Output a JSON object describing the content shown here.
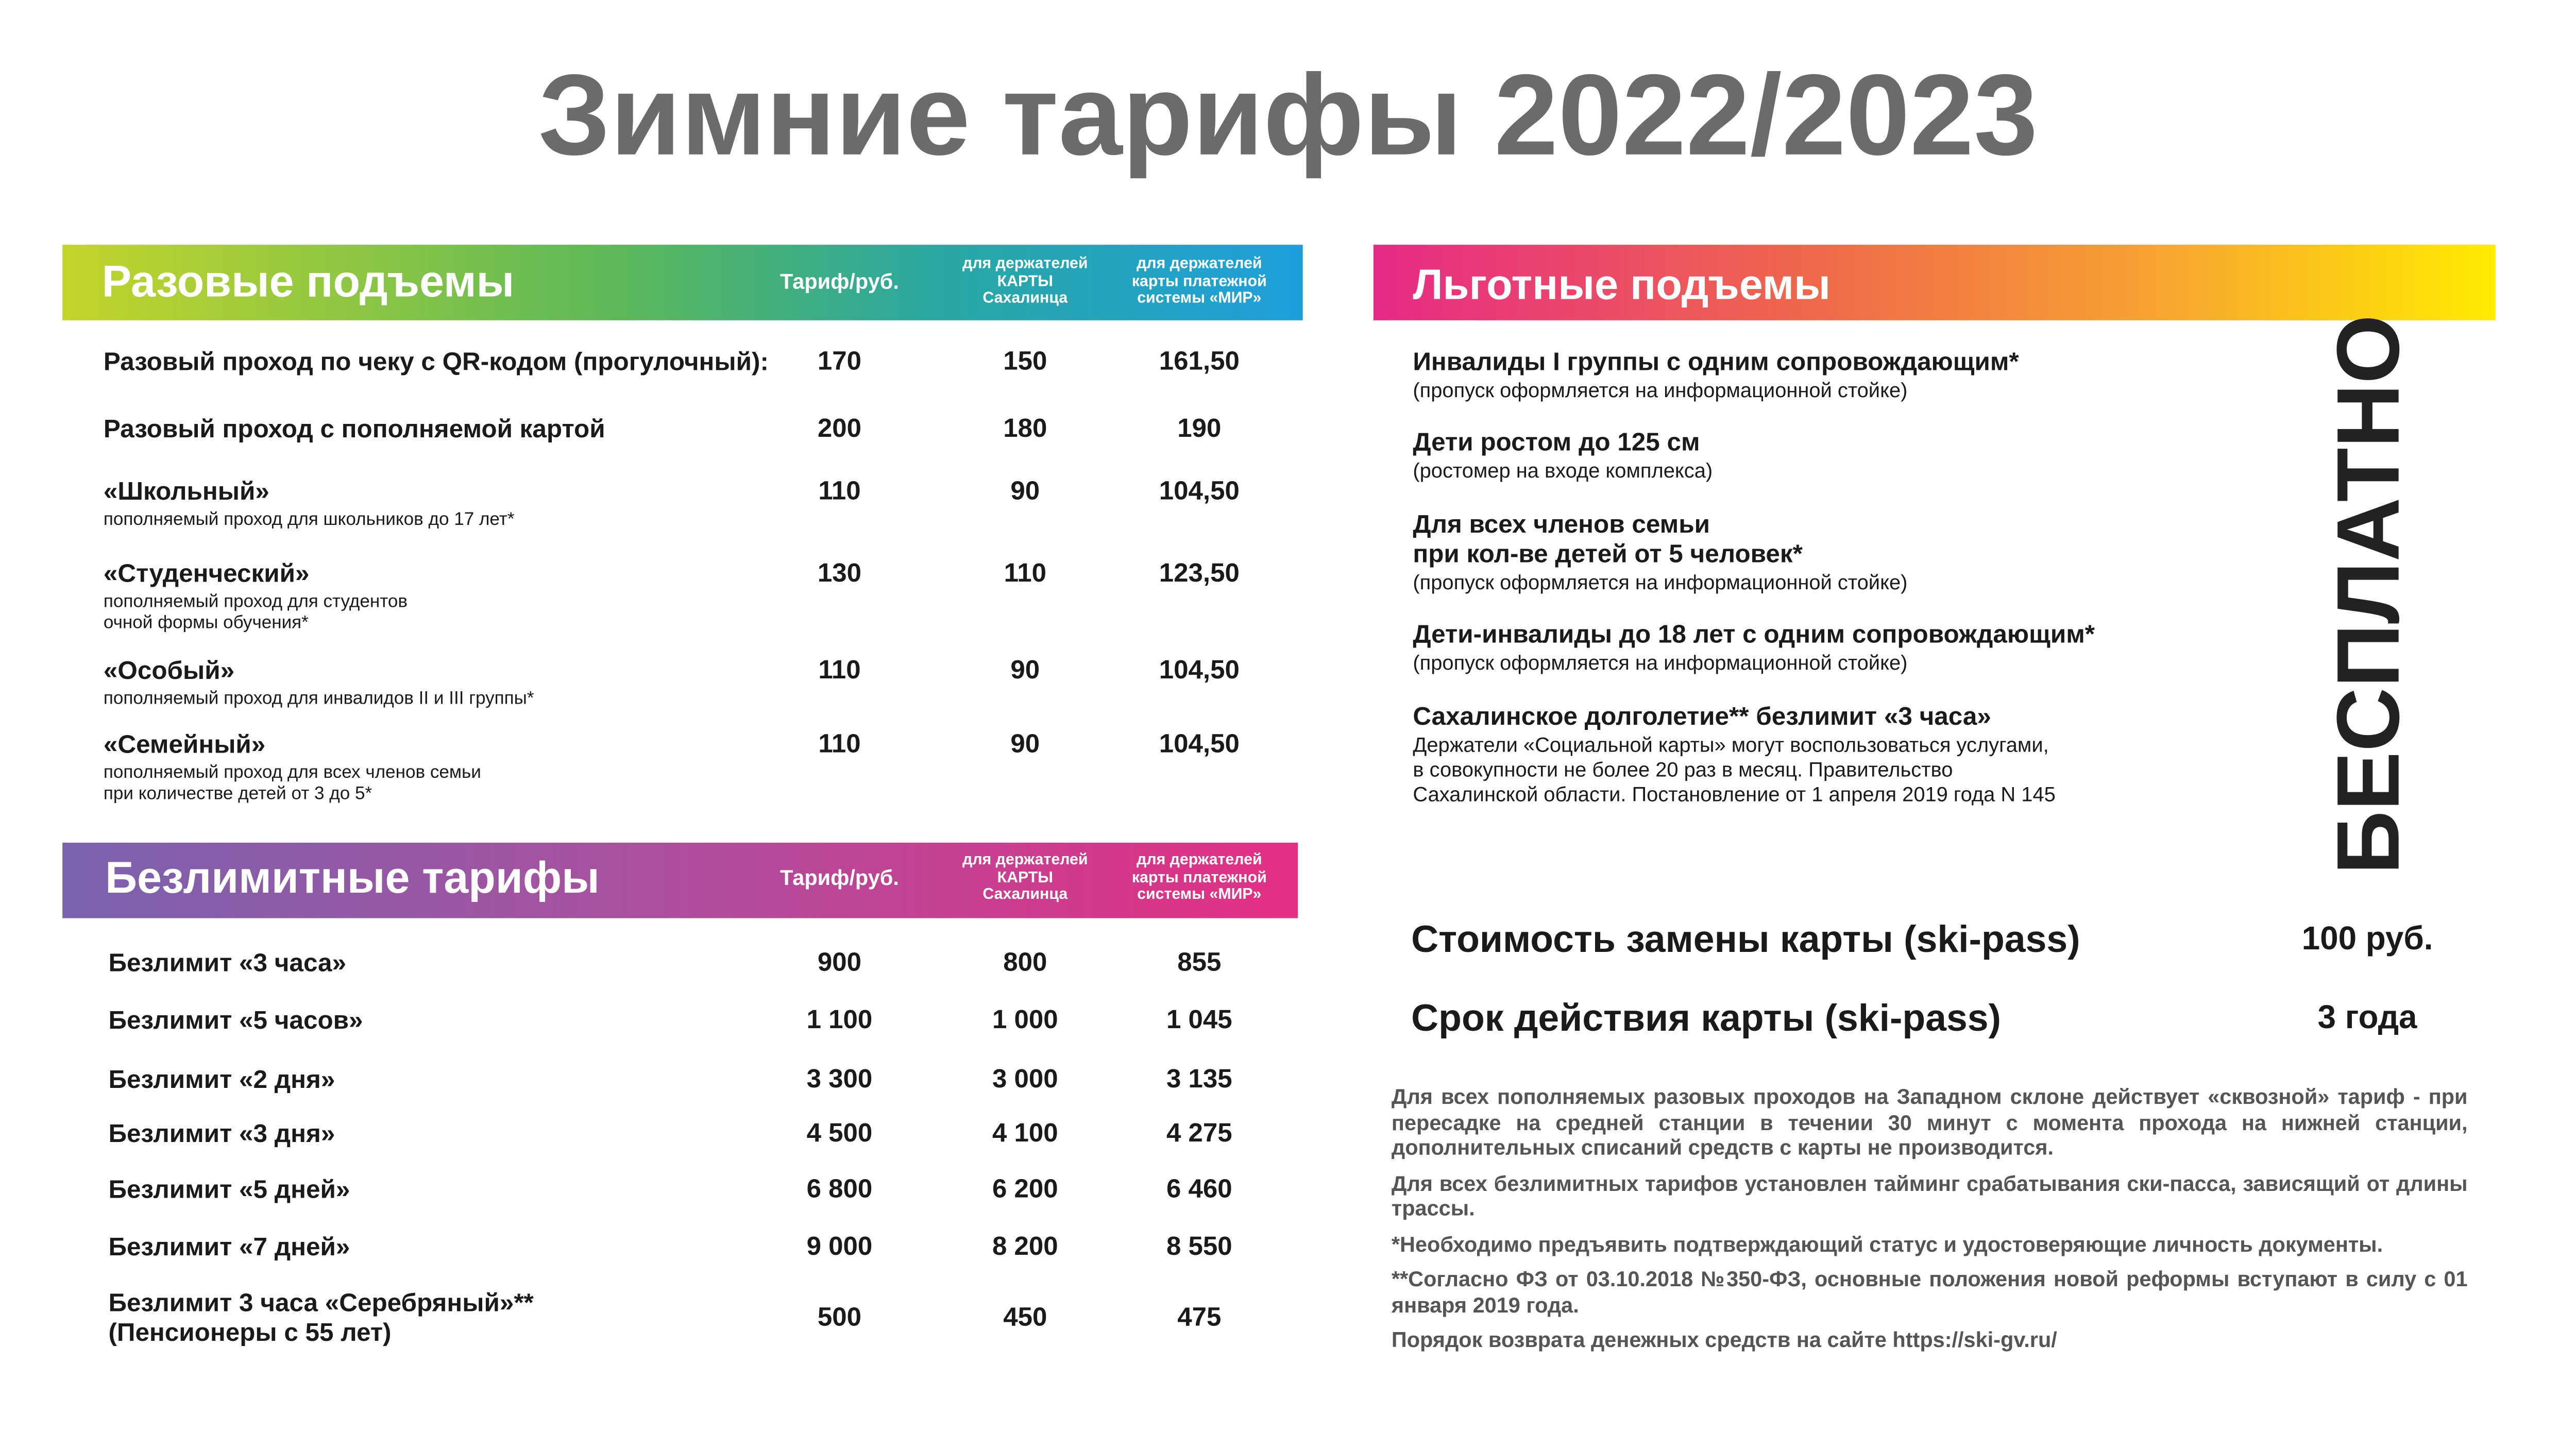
{
  "title": "Зимние тарифы 2022/2023",
  "single": {
    "title": "Разовые подъемы",
    "columns": [
      "Тариф/руб.",
      "для держателей КАРТЫ Сахалинца",
      "для держателей карты платежной системы «МИР»"
    ],
    "rows": [
      {
        "name": "Разовый проход по чеку с QR-кодом (прогулочный):",
        "note": [],
        "values": [
          "170",
          "150",
          "161,50"
        ]
      },
      {
        "name": "Разовый проход с пополняемой картой",
        "note": [],
        "values": [
          "200",
          "180",
          "190"
        ]
      },
      {
        "name": "«Школьный»",
        "note": [
          "пополняемый проход для школьников до 17 лет*"
        ],
        "values": [
          "110",
          "90",
          "104,50"
        ]
      },
      {
        "name": "«Студенческий»",
        "note": [
          "пополняемый проход для студентов",
          "очной формы обучения*"
        ],
        "values": [
          "130",
          "110",
          "123,50"
        ]
      },
      {
        "name": "«Особый»",
        "note": [
          "пополняемый проход для инвалидов II и III группы*"
        ],
        "values": [
          "110",
          "90",
          "104,50"
        ]
      },
      {
        "name": "«Семейный»",
        "note": [
          "пополняемый проход для всех членов семьи",
          "при количестве детей от 3 до 5*"
        ],
        "values": [
          "110",
          "90",
          "104,50"
        ]
      }
    ]
  },
  "unlimited": {
    "title": "Безлимитные тарифы",
    "columns": [
      "Тариф/руб.",
      "для держателей КАРТЫ Сахалинца",
      "для держателей карты платежной системы «МИР»"
    ],
    "rows": [
      {
        "name": [
          "Безлимит «3 часа»"
        ],
        "values": [
          "900",
          "800",
          "855"
        ]
      },
      {
        "name": [
          "Безлимит «5 часов»"
        ],
        "values": [
          "1 100",
          "1 000",
          "1 045"
        ]
      },
      {
        "name": [
          "Безлимит «2 дня»"
        ],
        "values": [
          "3 300",
          "3 000",
          "3 135"
        ]
      },
      {
        "name": [
          "Безлимит «3 дня»"
        ],
        "values": [
          "4 500",
          "4 100",
          "4 275"
        ]
      },
      {
        "name": [
          "Безлимит «5 дней»"
        ],
        "values": [
          "6 800",
          "6 200",
          "6 460"
        ]
      },
      {
        "name": [
          "Безлимит «7 дней»"
        ],
        "values": [
          "9 000",
          "8 200",
          "8 550"
        ]
      },
      {
        "name": [
          "Безлимит 3 часа «Серебряный»**",
          "(Пенсионеры с 55 лет)"
        ],
        "values": [
          "500",
          "450",
          "475"
        ]
      }
    ]
  },
  "benefits": {
    "title": "Льготные подъемы",
    "free": "БЕСПЛАТНО",
    "items": [
      {
        "title": [
          "Инвалиды I группы с одним сопровождающим*"
        ],
        "note": [
          "(пропуск оформляется на информационной стойке)"
        ]
      },
      {
        "title": [
          "Дети ростом до 125 см"
        ],
        "note": [
          "(ростомер на входе комплекса)"
        ]
      },
      {
        "title": [
          "Для всех членов семьи",
          "при кол-ве детей от 5 человек*"
        ],
        "note": [
          "(пропуск оформляется на информационной стойке)"
        ]
      },
      {
        "title": [
          "Дети-инвалиды до 18 лет с одним сопровождающим*"
        ],
        "note": [
          "(пропуск оформляется на информационной стойке)"
        ]
      },
      {
        "title": [
          "Сахалинское долголетие** безлимит «3 часа»"
        ],
        "note": [
          "Держатели «Социальной карты» могут воспользоваться услугами,",
          "в совокупности не более 20 раз в месяц. Правительство",
          "Сахалинской области. Постановление от 1 апреля 2019 года N 145"
        ]
      }
    ]
  },
  "card": [
    {
      "label": "Стоимость замены карты (ski-pass)",
      "value": "100 руб."
    },
    {
      "label": "Срок действия карты (ski-pass)",
      "value": "3 года"
    }
  ],
  "footnotes": [
    "Для всех пополняемых разовых проходов на Западном склоне действует «сквозной» тариф - при пересадке на средней станции в течении 30 минут с момента прохода на нижней станции, дополнительных списаний средств с карты не производится.",
    "Для всех безлимитных тарифов установлен тайминг срабатывания ски-пасса, зависящий от длины трассы.",
    "*Необходимо предъявить подтверждающий статус и удостоверяющие личность документы.",
    "**Согласно ФЗ от 03.10.2018 №350-ФЗ, основные положения новой реформы вступают в силу с 01 января 2019 года.",
    "Порядок возврата денежных средств на сайте https://ski-gv.ru/"
  ]
}
